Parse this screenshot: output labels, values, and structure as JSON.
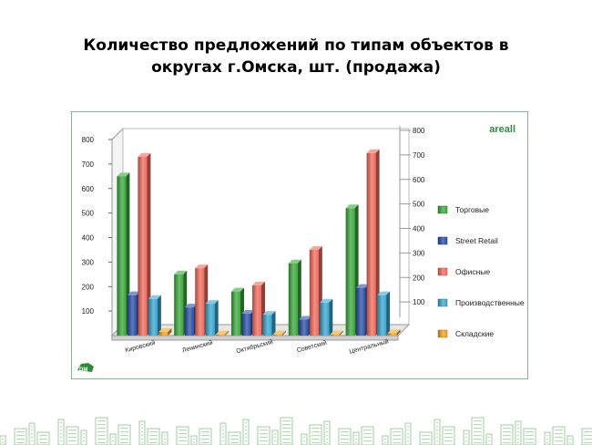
{
  "header": {
    "title_line1": "Количество предложений по типам объектов в",
    "title_line2": "округах г.Омска, шт. (продажа)"
  },
  "brand": {
    "name": "areall",
    "logo_text": "DM"
  },
  "chart_data": {
    "type": "bar",
    "title": "Количество предложений по типам объектов в округах г.Омска, шт. (продажа)",
    "categories": [
      "Кировский",
      "Ленинский",
      "Октябрьский",
      "Советский",
      "Центральный"
    ],
    "series": [
      {
        "name": "Торговые",
        "values": [
          650,
          250,
          180,
          295,
          520
        ],
        "color": "#3aa83a"
      },
      {
        "name": "Street Retail",
        "values": [
          165,
          115,
          90,
          65,
          195
        ],
        "color": "#2a4fa8"
      },
      {
        "name": "Офисные",
        "values": [
          730,
          275,
          205,
          350,
          745
        ],
        "color": "#f06a5c"
      },
      {
        "name": "Производственные",
        "values": [
          150,
          130,
          85,
          135,
          165
        ],
        "color": "#39a6d0"
      },
      {
        "name": "Складские",
        "values": [
          15,
          5,
          5,
          5,
          10
        ],
        "color": "#f0a020"
      }
    ],
    "ylim": [
      0,
      800
    ],
    "left_ticks": [
      100,
      200,
      300,
      400,
      500,
      600,
      700,
      800
    ],
    "right_ticks": [
      100,
      200,
      300,
      400,
      500,
      600,
      700,
      800
    ],
    "grid": false,
    "legend_position": "right"
  }
}
